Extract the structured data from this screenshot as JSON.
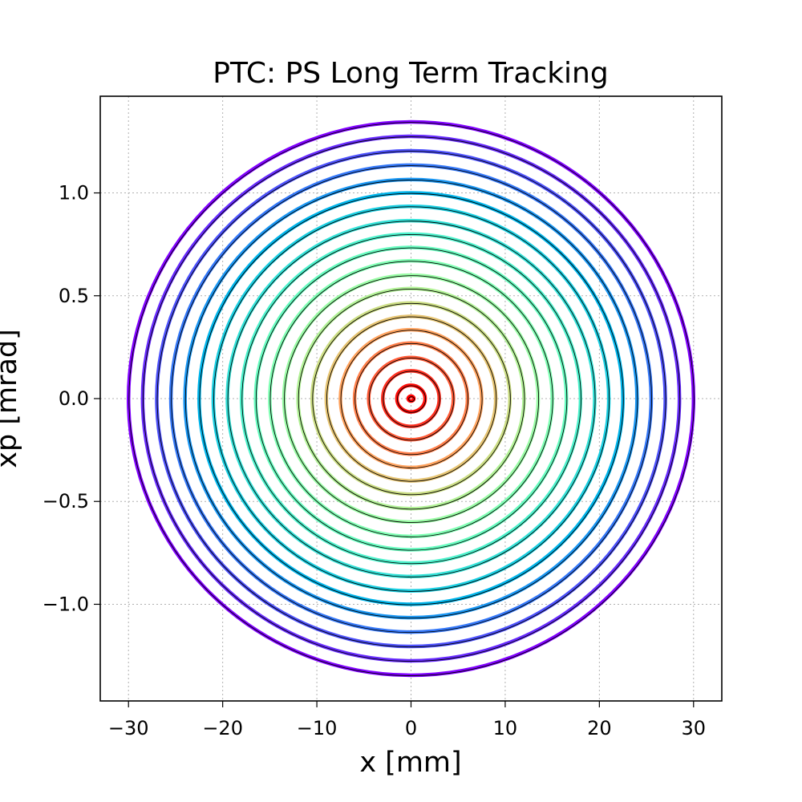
{
  "chart_data": {
    "type": "scatter",
    "title": "PTC: PS Long Term Tracking",
    "xlabel": "x [mm]",
    "ylabel": "xp [mrad]",
    "xlim": [
      -33,
      33
    ],
    "ylim": [
      -1.47,
      1.47
    ],
    "xticks": [
      -30,
      -20,
      -10,
      0,
      10,
      20,
      30
    ],
    "xtick_labels": [
      "−30",
      "−20",
      "−10",
      "0",
      "10",
      "20",
      "30"
    ],
    "yticks": [
      -1.0,
      -0.5,
      0.0,
      0.5,
      1.0
    ],
    "ytick_labels": [
      "−1.0",
      "−0.5",
      "0.0",
      "0.5",
      "1.0"
    ],
    "grid": true,
    "colormap": "rainbow (violet outer → red inner)",
    "outline_color": "#000000",
    "series": [
      {
        "x_amplitude": 30.0,
        "xp_amplitude": 1.345,
        "color": "#8000ff"
      },
      {
        "x_amplitude": 28.5,
        "xp_amplitude": 1.275,
        "color": "#6629fe"
      },
      {
        "x_amplitude": 27.0,
        "xp_amplitude": 1.205,
        "color": "#4c50fc"
      },
      {
        "x_amplitude": 25.5,
        "xp_amplitude": 1.135,
        "color": "#3377f8"
      },
      {
        "x_amplitude": 24.0,
        "xp_amplitude": 1.065,
        "color": "#1996f3"
      },
      {
        "x_amplitude": 22.5,
        "xp_amplitude": 1.0,
        "color": "#00b5eb"
      },
      {
        "x_amplitude": 21.0,
        "xp_amplitude": 0.935,
        "color": "#19cfe2"
      },
      {
        "x_amplitude": 19.5,
        "xp_amplitude": 0.865,
        "color": "#33e2d8"
      },
      {
        "x_amplitude": 18.0,
        "xp_amplitude": 0.8,
        "color": "#4cf2cc"
      },
      {
        "x_amplitude": 16.5,
        "xp_amplitude": 0.735,
        "color": "#66fcbf"
      },
      {
        "x_amplitude": 15.0,
        "xp_amplitude": 0.67,
        "color": "#80ffb4"
      },
      {
        "x_amplitude": 13.5,
        "xp_amplitude": 0.6,
        "color": "#99fca5"
      },
      {
        "x_amplitude": 12.0,
        "xp_amplitude": 0.535,
        "color": "#b2f296"
      },
      {
        "x_amplitude": 10.5,
        "xp_amplitude": 0.465,
        "color": "#ccde84"
      },
      {
        "x_amplitude": 9.0,
        "xp_amplitude": 0.4,
        "color": "#e6c472"
      },
      {
        "x_amplitude": 7.5,
        "xp_amplitude": 0.335,
        "color": "#ffa25d"
      },
      {
        "x_amplitude": 6.0,
        "xp_amplitude": 0.27,
        "color": "#ff7f4a"
      },
      {
        "x_amplitude": 4.5,
        "xp_amplitude": 0.2,
        "color": "#ff5a36"
      },
      {
        "x_amplitude": 3.0,
        "xp_amplitude": 0.135,
        "color": "#ff3020"
      },
      {
        "x_amplitude": 1.5,
        "xp_amplitude": 0.065,
        "color": "#ff0c08"
      },
      {
        "x_amplitude": 0.3,
        "xp_amplitude": 0.012,
        "color": "#ff0000"
      }
    ]
  }
}
